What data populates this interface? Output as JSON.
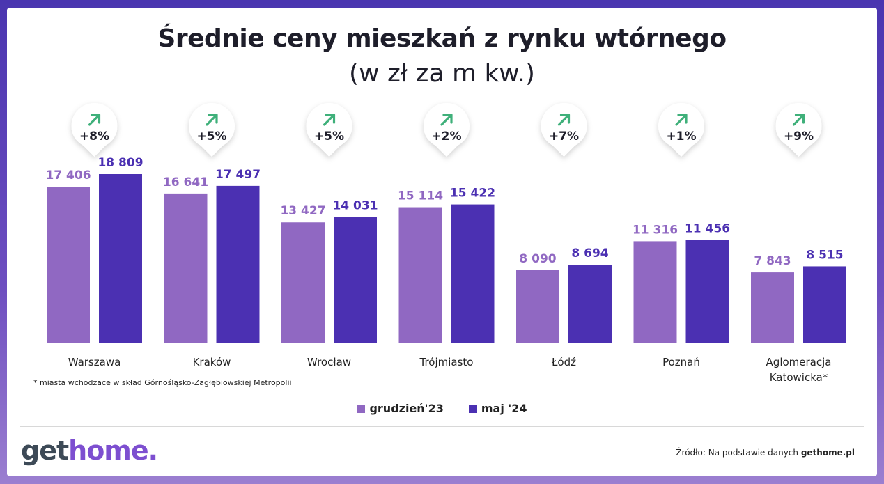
{
  "title": "Średnie ceny mieszkań z rynku wtórnego",
  "subtitle": "(w zł za m kw.)",
  "footnote": "* miasta wchodzace w skład Górnośląsko-Zagłębiowskiej Metropolii",
  "source_prefix": "Źródło: Na podstawie danych",
  "source_brand": "gethome.pl",
  "logo": {
    "part1": "get",
    "part2": "home."
  },
  "colors": {
    "grudzien": "#9068c2",
    "maj": "#4b30b2",
    "arrow": "#3fb07a"
  },
  "chart_data": {
    "type": "bar",
    "categories": [
      "Warszawa",
      "Kraków",
      "Wrocław",
      "Trójmiasto",
      "Łódź",
      "Poznań",
      "Aglomeracja Katowicka*"
    ],
    "series": [
      {
        "name": "grudzień'23",
        "values": [
          17406,
          16641,
          13427,
          15114,
          8090,
          11316,
          7843
        ]
      },
      {
        "name": "maj '24",
        "values": [
          18809,
          17497,
          14031,
          15422,
          8694,
          11456,
          8515
        ]
      }
    ],
    "value_labels": [
      [
        "17 406",
        "16 641",
        "13 427",
        "15 114",
        "8 090",
        "11 316",
        "7 843"
      ],
      [
        "18 809",
        "17 497",
        "14 031",
        "15 422",
        "8 694",
        "11 456",
        "8 515"
      ]
    ],
    "change_labels": [
      "+8%",
      "+5%",
      "+5%",
      "+2%",
      "+7%",
      "+1%",
      "+9%"
    ],
    "ylim": [
      0,
      18809
    ],
    "legend_position": "bottom",
    "grid": false
  }
}
